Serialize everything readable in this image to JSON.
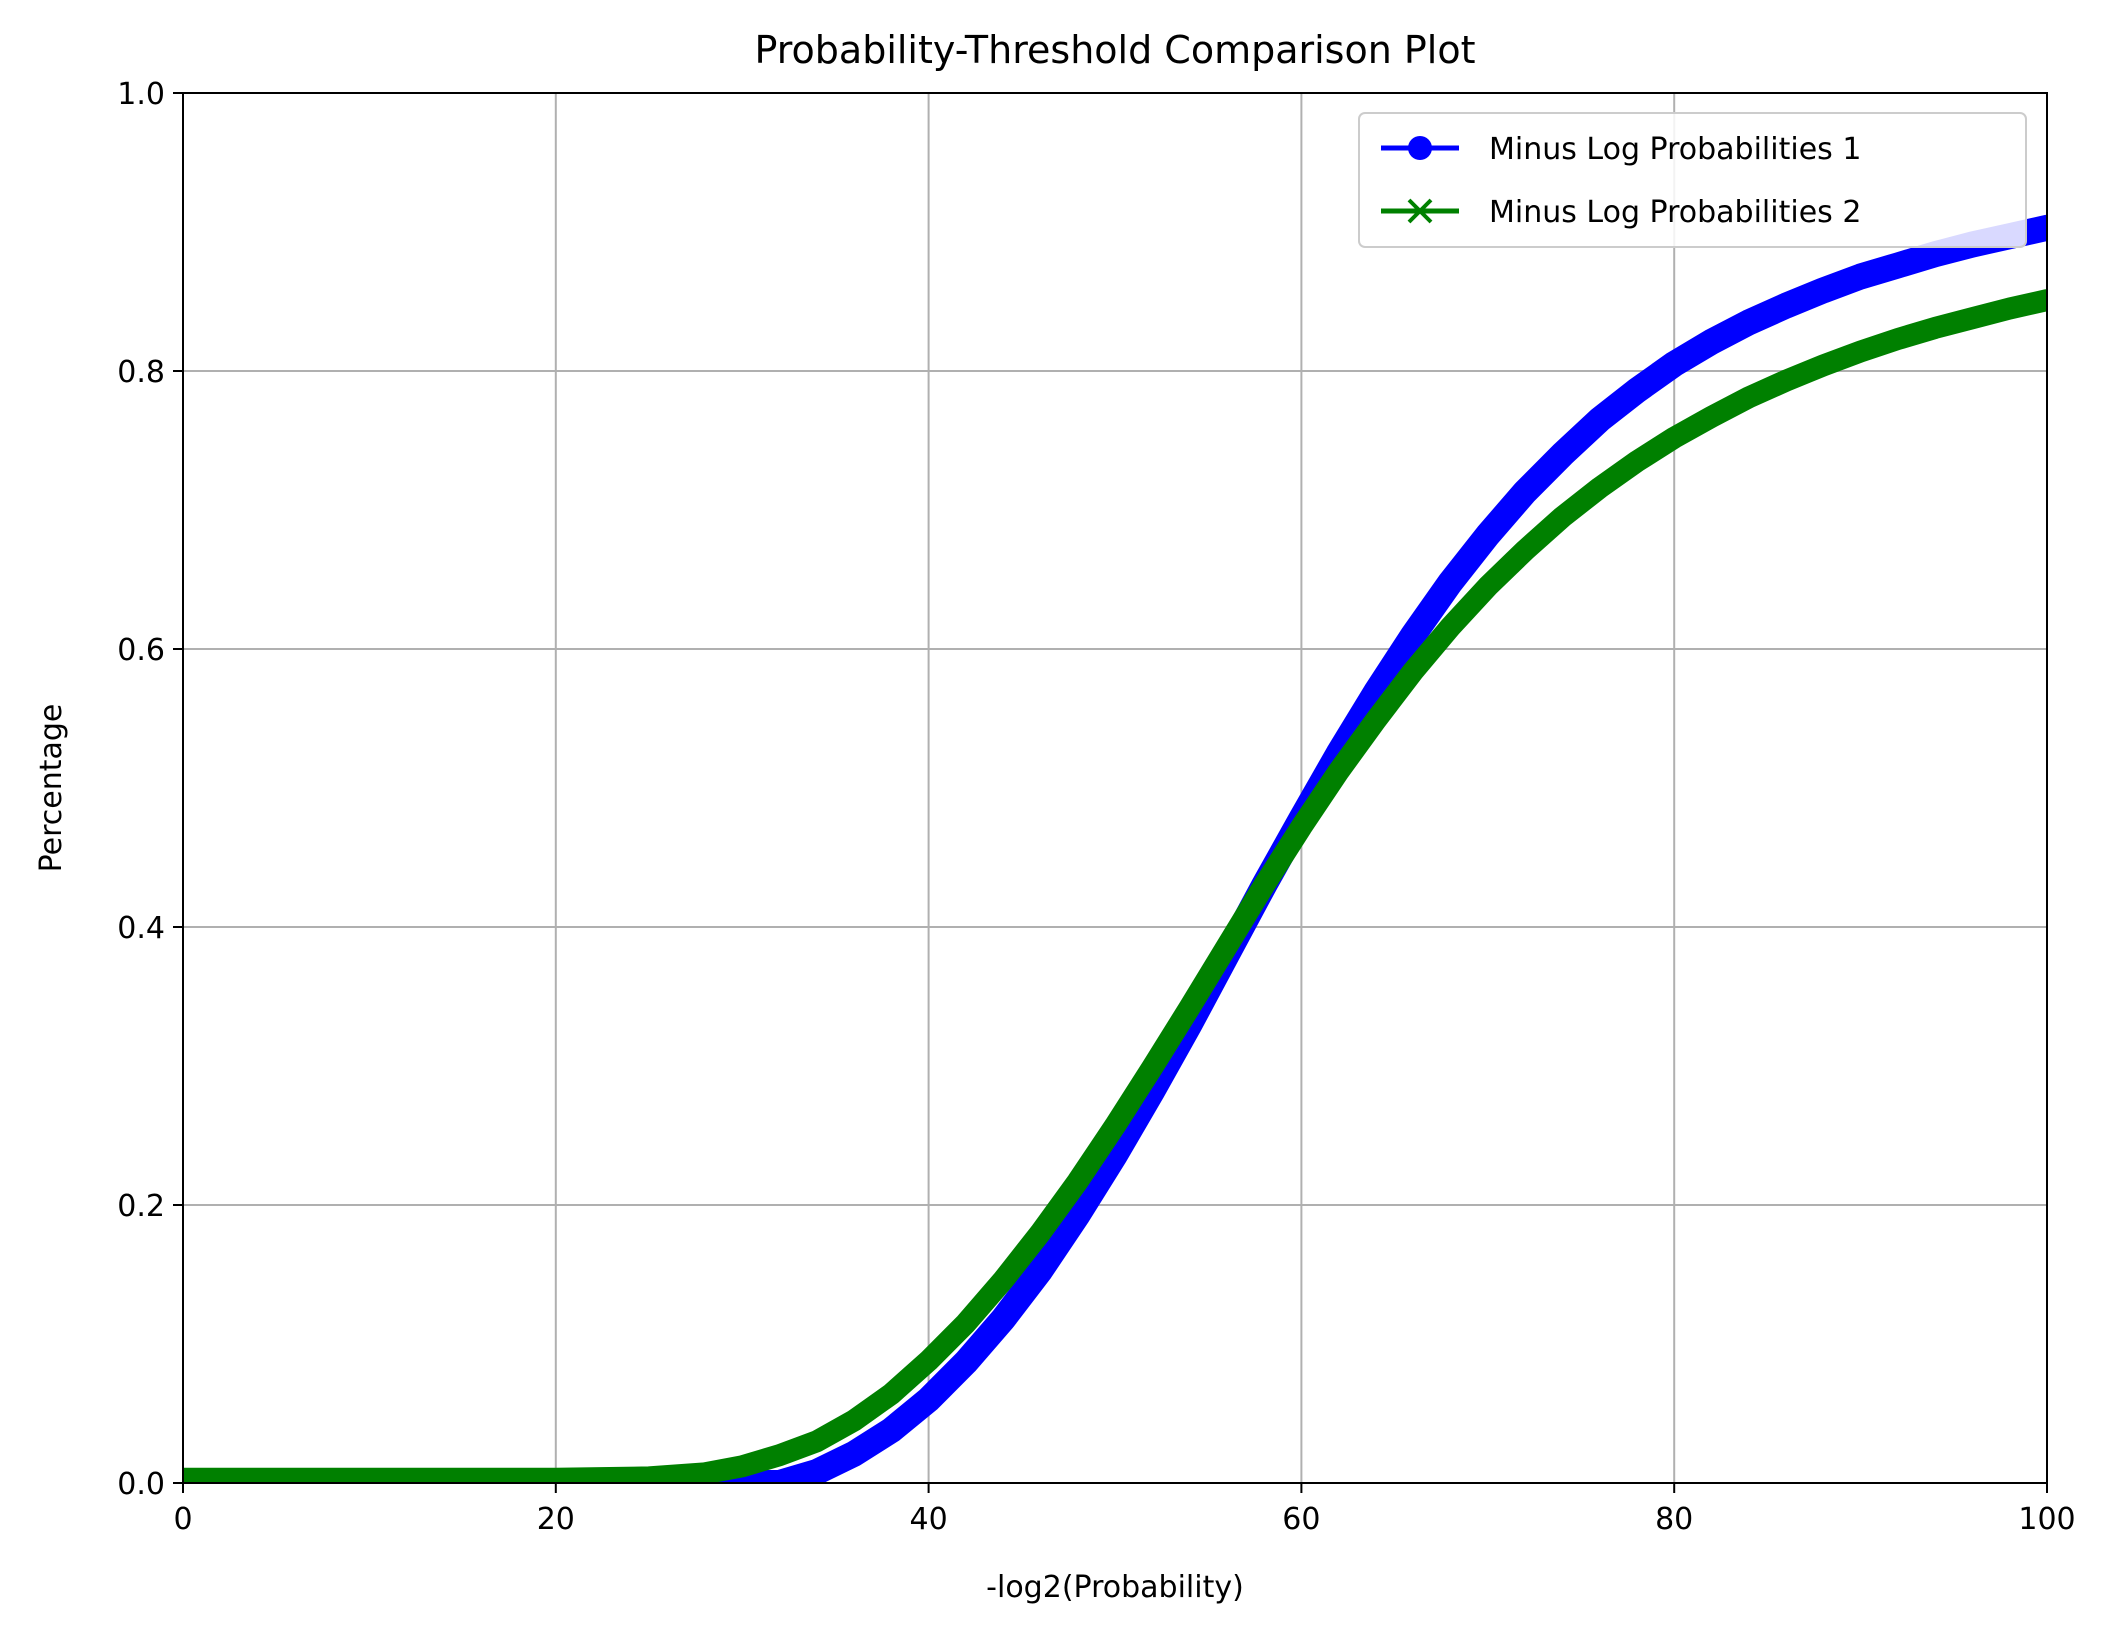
{
  "chart_data": {
    "type": "line",
    "title": "Probability-Threshold Comparison Plot",
    "xlabel": "-log2(Probability)",
    "ylabel": "Percentage",
    "xlim": [
      0,
      100
    ],
    "ylim": [
      0,
      1.0
    ],
    "x_ticks": [
      "0",
      "20",
      "40",
      "60",
      "80",
      "100"
    ],
    "y_ticks": [
      "0.0",
      "0.2",
      "0.4",
      "0.6",
      "0.8",
      "1.0"
    ],
    "grid": true,
    "legend_position": "top-right",
    "series": [
      {
        "name": "Minus Log Probabilities 1",
        "color": "#0000ff",
        "marker": "circle",
        "x": [
          0,
          5,
          10,
          15,
          20,
          25,
          28,
          30,
          32,
          34,
          36,
          38,
          40,
          42,
          44,
          46,
          48,
          50,
          52,
          54,
          56,
          58,
          60,
          62,
          64,
          66,
          68,
          70,
          72,
          74,
          76,
          78,
          80,
          82,
          84,
          86,
          88,
          90,
          92,
          94,
          96,
          98,
          100
        ],
        "y": [
          0.0,
          0.0,
          0.0,
          0.0,
          0.0,
          0.0,
          0.0,
          0.0,
          0.0,
          0.008,
          0.021,
          0.038,
          0.06,
          0.087,
          0.118,
          0.153,
          0.193,
          0.236,
          0.282,
          0.33,
          0.38,
          0.43,
          0.478,
          0.525,
          0.569,
          0.61,
          0.648,
          0.682,
          0.713,
          0.74,
          0.765,
          0.786,
          0.805,
          0.821,
          0.835,
          0.847,
          0.858,
          0.868,
          0.876,
          0.884,
          0.891,
          0.897,
          0.903
        ]
      },
      {
        "name": "Minus Log Probabilities 2",
        "color": "#008000",
        "marker": "x",
        "x": [
          0,
          5,
          10,
          15,
          20,
          25,
          28,
          30,
          32,
          34,
          36,
          38,
          40,
          42,
          44,
          46,
          48,
          50,
          52,
          54,
          56,
          58,
          60,
          62,
          64,
          66,
          68,
          70,
          72,
          74,
          76,
          78,
          80,
          82,
          84,
          86,
          88,
          90,
          92,
          94,
          96,
          98,
          100
        ],
        "y": [
          0.003,
          0.003,
          0.003,
          0.003,
          0.003,
          0.004,
          0.007,
          0.012,
          0.02,
          0.03,
          0.045,
          0.064,
          0.088,
          0.115,
          0.146,
          0.18,
          0.217,
          0.257,
          0.299,
          0.342,
          0.386,
          0.43,
          0.472,
          0.512,
          0.549,
          0.584,
          0.616,
          0.645,
          0.671,
          0.695,
          0.716,
          0.735,
          0.752,
          0.767,
          0.781,
          0.793,
          0.804,
          0.814,
          0.823,
          0.831,
          0.838,
          0.845,
          0.851
        ]
      }
    ]
  }
}
